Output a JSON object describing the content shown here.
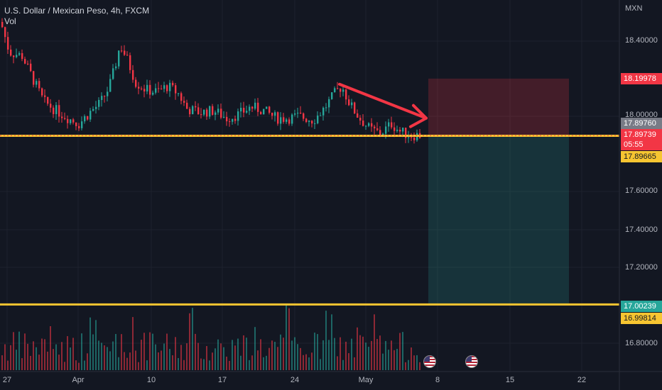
{
  "header": {
    "symbol_line": "U.S. Dollar / Mexican Peso, 4h, FXCM",
    "volume_label": "Vol"
  },
  "price_axis": {
    "currency": "MXN",
    "ticks": [
      "18.40000",
      "18.00000",
      "17.60000",
      "17.40000",
      "17.20000",
      "16.80000"
    ],
    "tags": {
      "target": {
        "label": "18.19978",
        "color": "#f23645"
      },
      "last_close": {
        "label": "17.89760",
        "color": "#787b86"
      },
      "current": {
        "label": "17.89739",
        "color": "#f23645"
      },
      "countdown": {
        "label": "05:55",
        "color": "#f23645"
      },
      "entry": {
        "label": "17.89665",
        "color": "#f7c531"
      },
      "stop_upper": {
        "label": "17.00239",
        "color": "#26a69a"
      },
      "stop_lower": {
        "label": "16.99814",
        "color": "#f7c531"
      }
    }
  },
  "time_axis": {
    "labels": [
      "27",
      "Apr",
      "10",
      "17",
      "24",
      "May",
      "8",
      "15",
      "22"
    ]
  },
  "chart_data": {
    "type": "candlestick",
    "symbol": "USDMXN",
    "timeframe": "4h",
    "y_range": [
      16.72,
      18.58
    ],
    "colors": {
      "up": "#26a69a",
      "down": "#f23645",
      "line": "#f7c531",
      "arrow": "#f23645"
    },
    "close_path": [
      [
        0,
        18.5
      ],
      [
        12,
        18.34
      ],
      [
        30,
        18.32
      ],
      [
        45,
        18.2
      ],
      [
        60,
        18.08
      ],
      [
        78,
        18.03
      ],
      [
        95,
        17.99
      ],
      [
        110,
        17.96
      ],
      [
        125,
        18.02
      ],
      [
        140,
        18.07
      ],
      [
        152,
        18.15
      ],
      [
        160,
        18.25
      ],
      [
        168,
        18.38
      ],
      [
        178,
        18.3
      ],
      [
        190,
        18.18
      ],
      [
        205,
        18.14
      ],
      [
        220,
        18.13
      ],
      [
        235,
        18.16
      ],
      [
        250,
        18.12
      ],
      [
        262,
        18.04
      ],
      [
        280,
        18.02
      ],
      [
        300,
        18.03
      ],
      [
        318,
        17.99
      ],
      [
        335,
        18.01
      ],
      [
        352,
        18.05
      ],
      [
        370,
        18.03
      ],
      [
        388,
        17.99
      ],
      [
        405,
        17.99
      ],
      [
        420,
        18.0
      ],
      [
        440,
        17.98
      ],
      [
        455,
        18.04
      ],
      [
        470,
        18.12
      ],
      [
        480,
        18.16
      ],
      [
        492,
        18.06
      ],
      [
        505,
        17.99
      ],
      [
        520,
        17.93
      ],
      [
        535,
        17.91
      ],
      [
        550,
        17.96
      ],
      [
        562,
        17.92
      ],
      [
        575,
        17.9
      ],
      [
        590,
        17.9
      ]
    ],
    "horizontal_lines": [
      17.89665,
      17.00239
    ],
    "position": {
      "type": "short",
      "entry": 17.89665,
      "target_zone_top": 18.19978,
      "profit_zone_bottom": 17.00239
    },
    "arrow": {
      "from": [
        478,
        18.17
      ],
      "to": [
        600,
        17.99
      ]
    }
  }
}
